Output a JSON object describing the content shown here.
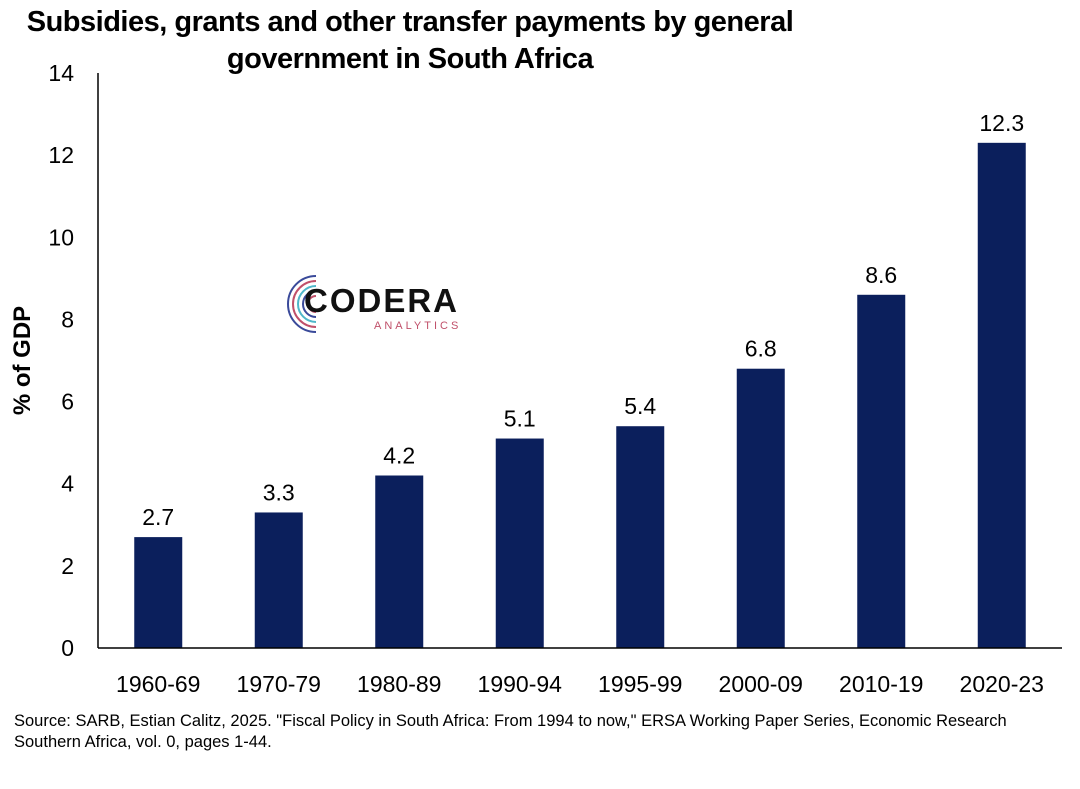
{
  "chart_data": {
    "type": "bar",
    "title": "Subsidies, grants and other transfer payments by general government in South Africa",
    "ylabel": "% of GDP",
    "xlabel": "",
    "categories": [
      "1960-69",
      "1970-79",
      "1980-89",
      "1990-94",
      "1995-99",
      "2000-09",
      "2010-19",
      "2020-23"
    ],
    "values": [
      2.7,
      3.3,
      4.2,
      5.1,
      5.4,
      6.8,
      8.6,
      12.3
    ],
    "data_labels": [
      "2.7",
      "3.3",
      "4.2",
      "5.1",
      "5.4",
      "6.8",
      "8.6",
      "12.3"
    ],
    "ylim": [
      0,
      14
    ],
    "yticks": [
      "0",
      "2",
      "4",
      "6",
      "8",
      "10",
      "12",
      "14"
    ],
    "grid": false,
    "bar_color": "#0b1f5c"
  },
  "logo": {
    "main": "CODERA",
    "sub": "ANALYTICS"
  },
  "source": "Source: SARB, Estian Calitz, 2025. \"Fiscal Policy in South Africa: From 1994 to now,\" ERSA Working Paper Series, Economic Research Southern Africa, vol. 0, pages 1-44."
}
